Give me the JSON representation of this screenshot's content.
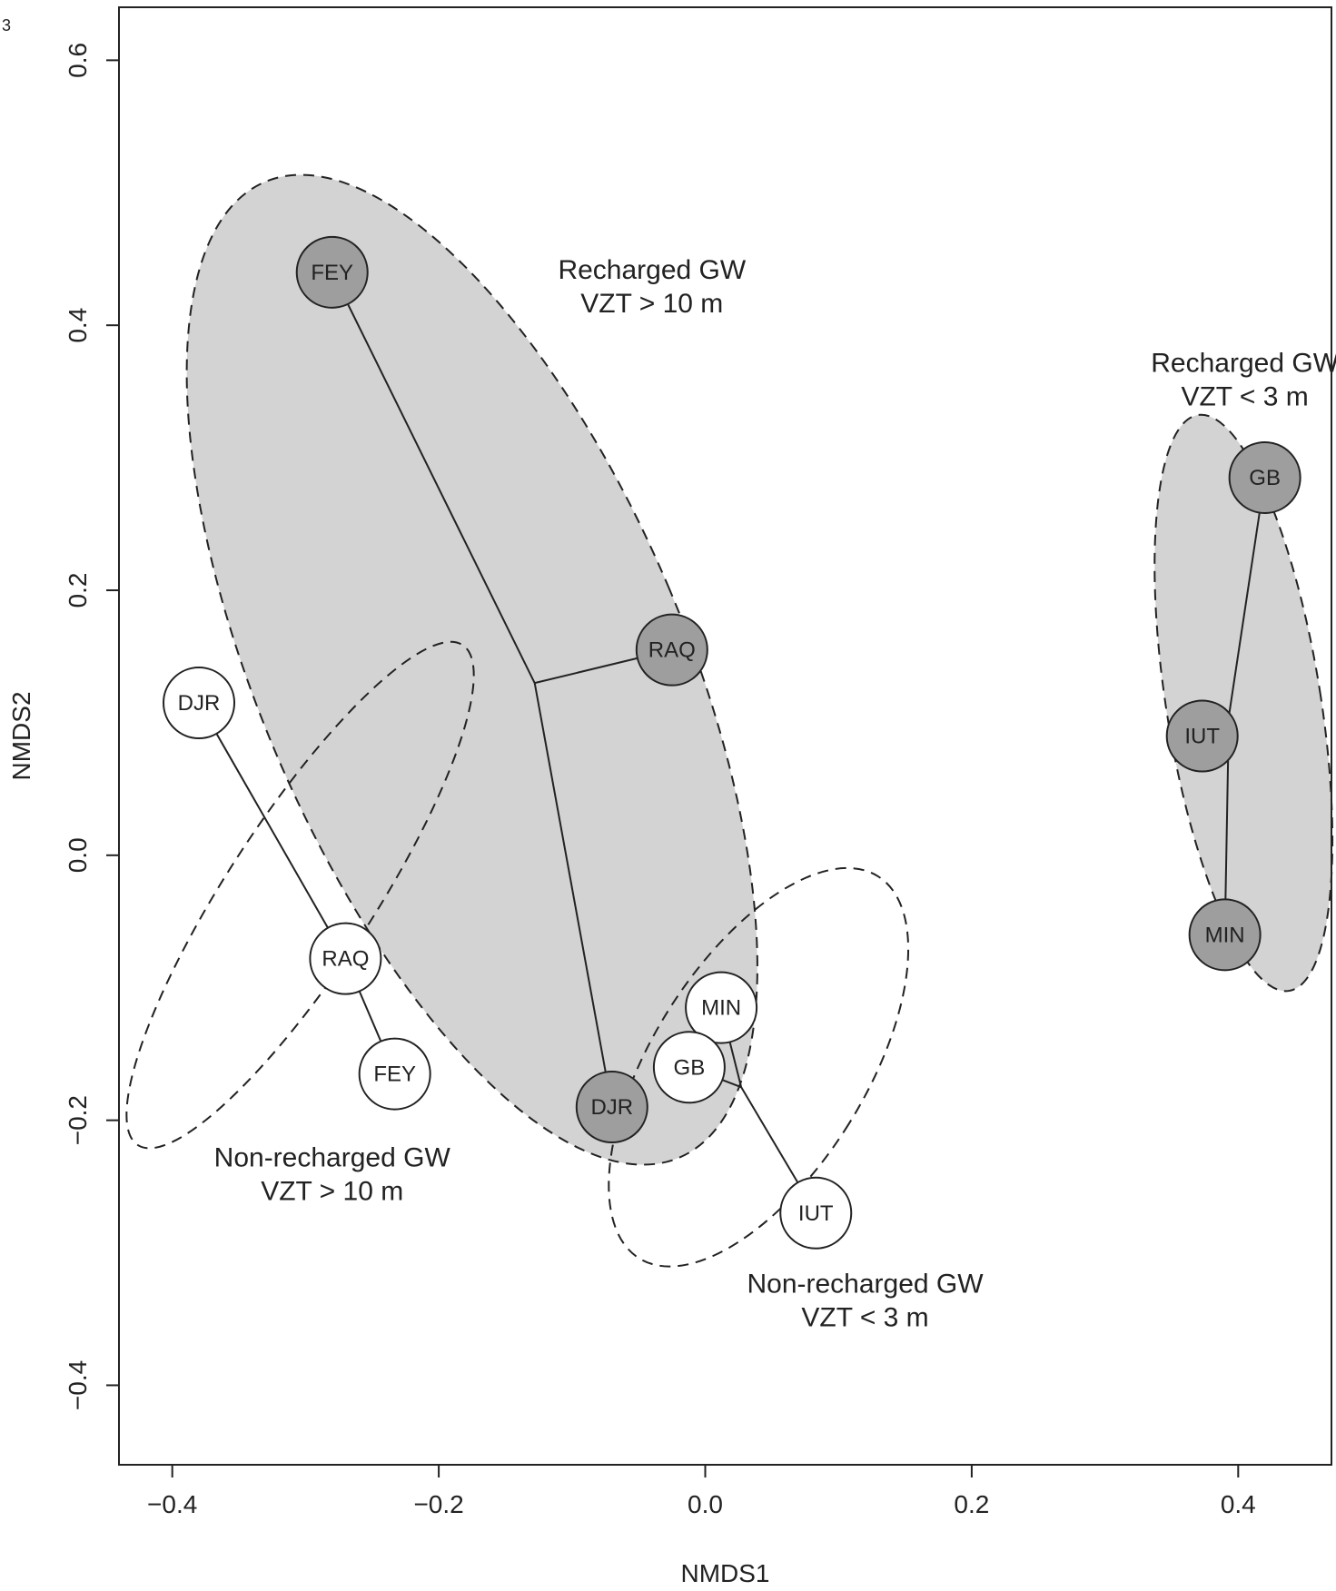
{
  "panel_label": "3",
  "chart_data": {
    "type": "scatter",
    "xlabel": "NMDS1",
    "ylabel": "NMDS2",
    "xlim": [
      -0.44,
      0.47
    ],
    "ylim": [
      -0.46,
      0.64
    ],
    "x_ticks": [
      -0.4,
      -0.2,
      0.0,
      0.2,
      0.4
    ],
    "y_ticks": [
      -0.4,
      -0.2,
      0.0,
      0.2,
      0.4,
      0.6
    ],
    "x_tick_labels": [
      "−0.4",
      "−0.2",
      "0.0",
      "0.2",
      "0.4"
    ],
    "y_tick_labels": [
      "−0.4",
      "−0.2",
      "0.0",
      "0.2",
      "0.4",
      "0.6"
    ],
    "grid": false,
    "colors": {
      "recharged_fill": "#9e9e9e",
      "nonrecharged_fill": "#ffffff",
      "ellipse_fill": "#d3d3d3",
      "line": "#222222"
    },
    "groups": [
      {
        "label_lines": [
          "Recharged GW",
          "VZT > 10 m"
        ],
        "recharged": true,
        "ellipse": {
          "cx": -0.175,
          "cy": 0.14,
          "rx": 0.16,
          "ry": 0.4,
          "angle_deg": -23
        },
        "label_at": [
          -0.04,
          0.435
        ],
        "points": [
          {
            "label": "FEY",
            "x": -0.28,
            "y": 0.44
          },
          {
            "label": "RAQ",
            "x": -0.025,
            "y": 0.155
          },
          {
            "label": "DJR",
            "x": -0.07,
            "y": -0.19
          }
        ],
        "hub": {
          "x": -0.128,
          "y": 0.13
        }
      },
      {
        "label_lines": [
          "Recharged GW",
          "VZT < 3 m"
        ],
        "recharged": true,
        "ellipse": {
          "cx": 0.404,
          "cy": 0.115,
          "rx": 0.058,
          "ry": 0.22,
          "angle_deg": -9
        },
        "label_at": [
          0.405,
          0.365
        ],
        "points": [
          {
            "label": "GB",
            "x": 0.42,
            "y": 0.285
          },
          {
            "label": "IUT",
            "x": 0.373,
            "y": 0.09
          },
          {
            "label": "MIN",
            "x": 0.39,
            "y": -0.06
          }
        ],
        "hub": {
          "x": 0.393,
          "y": 0.105
        }
      },
      {
        "label_lines": [
          "Non-recharged GW",
          "VZT > 10 m"
        ],
        "recharged": false,
        "ellipse": {
          "cx": -0.304,
          "cy": -0.03,
          "rx": 0.055,
          "ry": 0.225,
          "angle_deg": 33
        },
        "label_at": [
          -0.28,
          -0.235
        ],
        "points": [
          {
            "label": "DJR",
            "x": -0.38,
            "y": 0.115
          },
          {
            "label": "RAQ",
            "x": -0.27,
            "y": -0.078
          },
          {
            "label": "FEY",
            "x": -0.233,
            "y": -0.165
          }
        ],
        "hub": null
      },
      {
        "label_lines": [
          "Non-recharged GW",
          "VZT < 3 m"
        ],
        "recharged": false,
        "ellipse": {
          "cx": 0.04,
          "cy": -0.16,
          "rx": 0.08,
          "ry": 0.17,
          "angle_deg": 32
        },
        "label_at": [
          0.12,
          -0.33
        ],
        "points": [
          {
            "label": "MIN",
            "x": 0.012,
            "y": -0.115
          },
          {
            "label": "GB",
            "x": -0.012,
            "y": -0.16
          },
          {
            "label": "IUT",
            "x": 0.083,
            "y": -0.27
          }
        ],
        "hub": {
          "x": 0.027,
          "y": -0.175
        }
      }
    ]
  }
}
